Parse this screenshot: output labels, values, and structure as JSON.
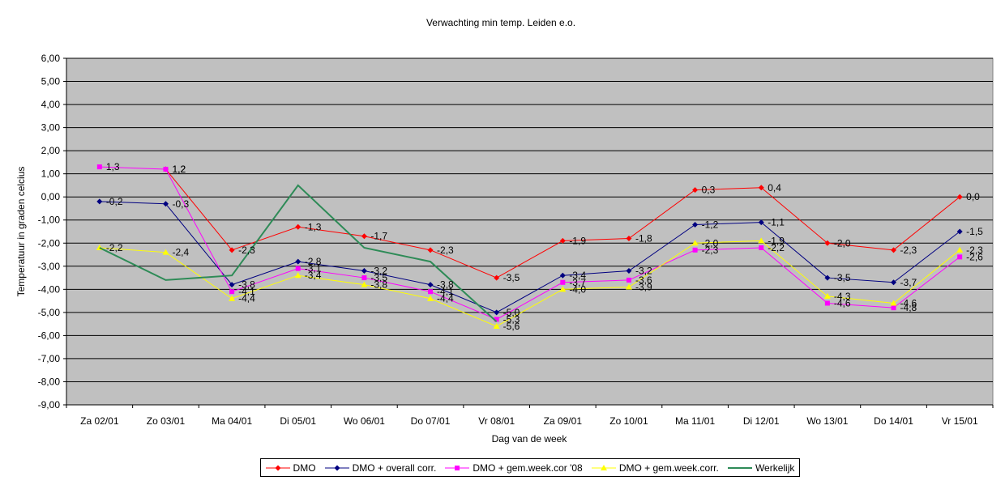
{
  "chart_data": {
    "type": "line",
    "title": "Verwachting min temp. Leiden e.o.",
    "xlabel": "Dag van de week",
    "ylabel": "Temperatuur in graden celcius",
    "ylim": [
      -9,
      6
    ],
    "yticks": [
      "6,00",
      "5,00",
      "4,00",
      "3,00",
      "2,00",
      "1,00",
      "0,00",
      "-1,00",
      "-2,00",
      "-3,00",
      "-4,00",
      "-5,00",
      "-6,00",
      "-7,00",
      "-8,00",
      "-9,00"
    ],
    "categories": [
      "Za 02/01",
      "Zo 03/01",
      "Ma 04/01",
      "Di 05/01",
      "Wo 06/01",
      "Do 07/01",
      "Vr 08/01",
      "Za 09/01",
      "Zo 10/01",
      "Ma 11/01",
      "Di 12/01",
      "Wo 13/01",
      "Do 14/01",
      "Vr 15/01"
    ],
    "plot_background": "#c0c0c0",
    "grid": true,
    "legend_position": "bottom",
    "series": [
      {
        "name": "DMO",
        "color": "#ff0000",
        "marker": "diamond",
        "values": [
          null,
          1.2,
          -2.3,
          -1.3,
          -1.7,
          -2.3,
          -3.5,
          -1.9,
          -1.8,
          0.3,
          0.4,
          -2.0,
          -2.3,
          0.0
        ],
        "labels": [
          "",
          "1,2",
          "-2,3",
          "-1,3",
          "-1,7",
          "-2,3",
          "-3,5",
          "-1,9",
          "-1,8",
          "0,3",
          "0,4",
          "-2,0",
          "-2,3",
          "0,0"
        ]
      },
      {
        "name": "DMO + overall corr.",
        "color": "#000080",
        "marker": "diamond",
        "values": [
          -0.2,
          -0.3,
          -3.8,
          -2.8,
          -3.2,
          -3.8,
          -5.0,
          -3.4,
          -3.2,
          -1.2,
          -1.1,
          -3.5,
          -3.7,
          -1.5
        ],
        "labels": [
          "-0,2",
          "-0,3",
          "-3,8",
          "-2,8",
          "-3,2",
          "-3,8",
          "-5,0",
          "-3,4",
          "-3,2",
          "-1,2",
          "-1,1",
          "-3,5",
          "-3,7",
          "-1,5"
        ]
      },
      {
        "name": "DMO + gem.week.cor '08",
        "color": "#ff00ff",
        "marker": "square",
        "values": [
          1.3,
          1.2,
          -4.1,
          -3.1,
          -3.5,
          -4.1,
          -5.3,
          -3.7,
          -3.6,
          -2.3,
          -2.2,
          -4.6,
          -4.8,
          -2.6
        ],
        "labels": [
          "1,3",
          "1,2",
          "-4,1",
          "-3,1",
          "-3,5",
          "-4,1",
          "-5,3",
          "-3,7",
          "-3,6",
          "-2,3",
          "-2,2",
          "-4,6",
          "-4,8",
          "-2,6"
        ]
      },
      {
        "name": "DMO + gem.week.corr.",
        "color": "#ffff00",
        "marker": "triangle",
        "values": [
          -2.2,
          -2.4,
          -4.4,
          -3.4,
          -3.8,
          -4.4,
          -5.6,
          -4.0,
          -3.9,
          -2.0,
          -1.9,
          -4.3,
          -4.6,
          -2.3
        ],
        "labels": [
          "-2,2",
          "-2,4",
          "-4,4",
          "-3,4",
          "-3,8",
          "-4,4",
          "-5,6",
          "-4,0",
          "-3,9",
          "-2,0",
          "-1,9",
          "-4,3",
          "-4,6",
          "-2,3"
        ]
      },
      {
        "name": "Werkelijk",
        "color": "#2e8b57",
        "marker": "none",
        "values": [
          -2.2,
          -3.6,
          -3.4,
          0.5,
          -2.2,
          -2.8,
          -5.4,
          null,
          null,
          null,
          null,
          null,
          null,
          null
        ],
        "labels": [
          "",
          "",
          "",
          "",
          "",
          "",
          "",
          "",
          "",
          "",
          "",
          "",
          "",
          ""
        ]
      }
    ]
  }
}
